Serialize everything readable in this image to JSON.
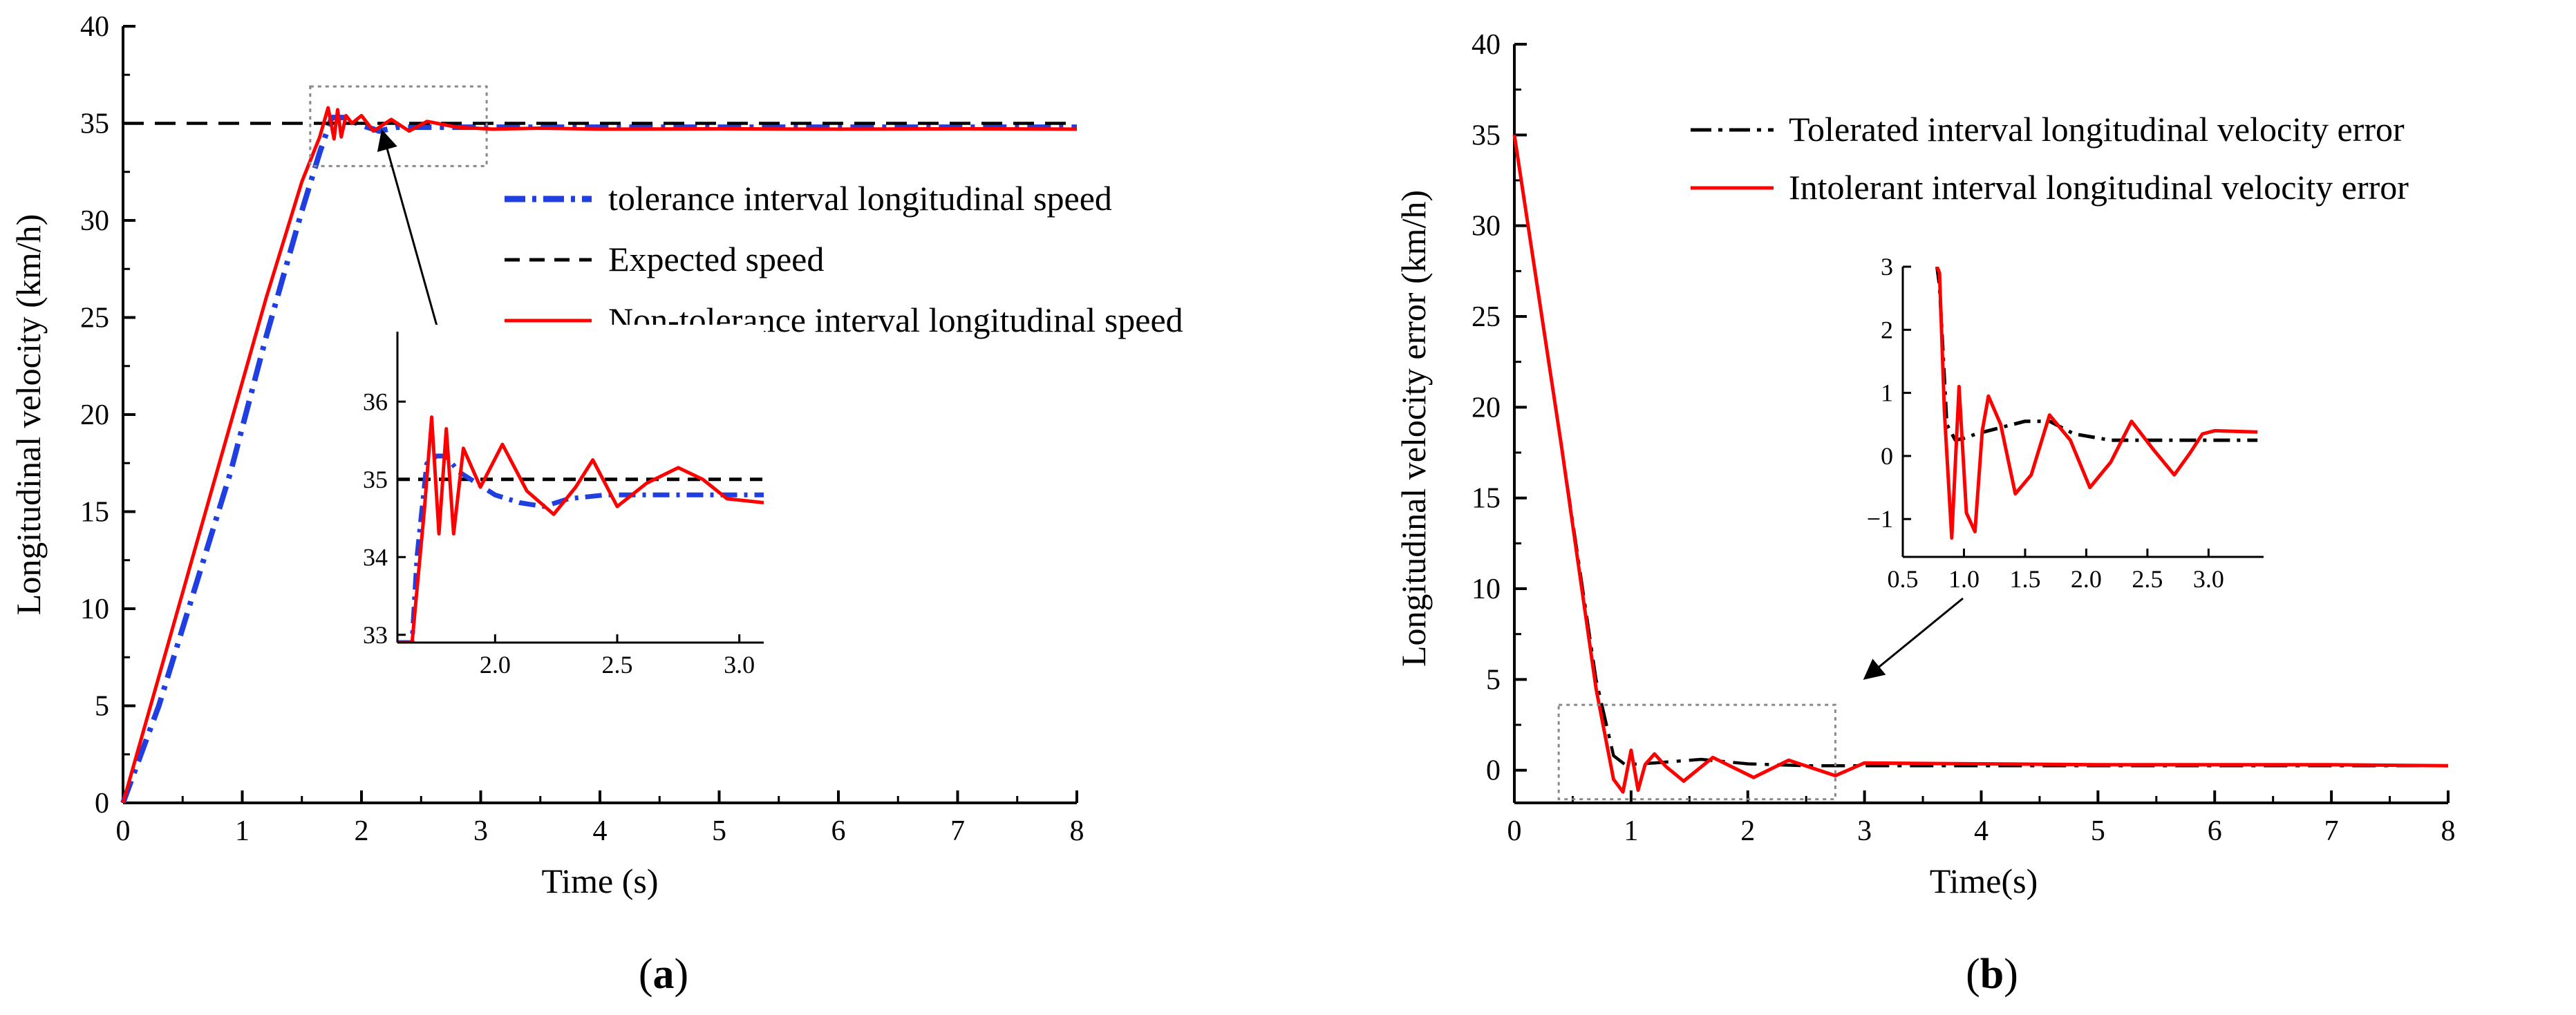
{
  "chart_data": [
    {
      "id": "a",
      "type": "line",
      "panel_label": "a",
      "xlabel": "Time (s)",
      "ylabel": "Longitudinal velocity (km/h)",
      "xlim": [
        0,
        8
      ],
      "ylim": [
        0,
        40
      ],
      "xticks": [
        0,
        1,
        2,
        3,
        4,
        5,
        6,
        7,
        8
      ],
      "yticks": [
        0,
        5,
        10,
        15,
        20,
        25,
        30,
        35,
        40
      ],
      "legend": {
        "position": "right",
        "entries": [
          {
            "label": "tolerance interval  longitudinal speed",
            "color": "#1f3fe0",
            "style": "dashdot"
          },
          {
            "label": "Expected speed",
            "color": "#000000",
            "style": "dashed"
          },
          {
            "label": "Non-tolerance interval longitudinal speed",
            "color": "#ff0000",
            "style": "solid"
          }
        ]
      },
      "series": [
        {
          "name": "tolerance interval  longitudinal speed",
          "color": "#1f3fe0",
          "x": [
            0,
            0.3,
            0.6,
            0.9,
            1.2,
            1.5,
            1.65,
            1.75,
            1.85,
            2.0,
            2.15,
            2.3,
            2.6,
            3.0,
            4.0,
            5.0,
            6.0,
            7.0,
            8.0
          ],
          "y": [
            0,
            5.0,
            11.0,
            17.0,
            24.0,
            30.5,
            33.5,
            35.3,
            35.3,
            34.9,
            34.6,
            34.8,
            34.8,
            34.8,
            34.8,
            34.8,
            34.8,
            34.8,
            34.8
          ]
        },
        {
          "name": "Expected speed",
          "color": "#000000",
          "x": [
            0,
            8
          ],
          "y": [
            35,
            35
          ]
        },
        {
          "name": "Non-tolerance interval longitudinal speed",
          "color": "#ff0000",
          "x": [
            0,
            0.3,
            0.6,
            0.9,
            1.2,
            1.5,
            1.65,
            1.72,
            1.77,
            1.8,
            1.83,
            1.87,
            1.92,
            2.0,
            2.1,
            2.25,
            2.4,
            2.55,
            2.8,
            3.1,
            3.5,
            4.0,
            5.0,
            6.0,
            7.0,
            8.0
          ],
          "y": [
            0,
            6.5,
            13.0,
            19.5,
            26.0,
            32.0,
            34.3,
            35.8,
            34.2,
            35.7,
            34.3,
            35.4,
            35.0,
            35.4,
            34.6,
            35.2,
            34.6,
            35.1,
            34.8,
            34.7,
            34.75,
            34.7,
            34.72,
            34.7,
            34.72,
            34.7
          ]
        }
      ],
      "inset": {
        "xlim": [
          1.6,
          3.1
        ],
        "ylim": [
          32.9,
          36.9
        ],
        "xticks": [
          2.0,
          2.5,
          3.0
        ],
        "xtick_labels": [
          "2.0",
          "2.5",
          "3.0"
        ],
        "yticks": [
          33,
          34,
          35,
          36
        ],
        "ytick_labels": [
          "33",
          "34",
          "35",
          "36"
        ],
        "zoom_box": {
          "x": [
            1.57,
            3.05
          ],
          "y": [
            32.8,
            36.9
          ]
        },
        "series": [
          {
            "name": "Expected speed",
            "color": "#000000",
            "style": "dashed",
            "x": [
              1.6,
              3.1
            ],
            "y": [
              35,
              35
            ]
          },
          {
            "name": "tolerance interval  longitudinal speed",
            "color": "#1f3fe0",
            "style": "dashdot",
            "x": [
              1.6,
              1.66,
              1.68,
              1.72,
              1.76,
              1.8,
              1.85,
              1.9,
              2.0,
              2.1,
              2.2,
              2.3,
              2.45,
              2.6,
              2.8,
              3.1
            ],
            "y": [
              32.9,
              32.9,
              34.0,
              35.2,
              35.3,
              35.3,
              35.1,
              35.0,
              34.8,
              34.7,
              34.65,
              34.75,
              34.8,
              34.8,
              34.8,
              34.8
            ]
          },
          {
            "name": "Non-tolerance interval longitudinal speed",
            "color": "#ff0000",
            "style": "solid",
            "x": [
              1.6,
              1.66,
              1.71,
              1.74,
              1.77,
              1.8,
              1.83,
              1.87,
              1.94,
              2.03,
              2.13,
              2.24,
              2.33,
              2.4,
              2.5,
              2.62,
              2.75,
              2.85,
              2.95,
              3.1
            ],
            "y": [
              32.9,
              32.9,
              34.6,
              35.8,
              34.3,
              35.65,
              34.3,
              35.4,
              34.9,
              35.45,
              34.85,
              34.55,
              34.9,
              35.25,
              34.65,
              34.95,
              35.15,
              35.0,
              34.75,
              34.7
            ]
          }
        ]
      }
    },
    {
      "id": "b",
      "type": "line",
      "panel_label": "b",
      "xlabel": "Time(s)",
      "ylabel": "Longitudinal velocity error (km/h)",
      "xlim": [
        0,
        8
      ],
      "ylim": [
        -1.8,
        40
      ],
      "xticks": [
        0,
        1,
        2,
        3,
        4,
        5,
        6,
        7,
        8
      ],
      "yticks": [
        0,
        5,
        10,
        15,
        20,
        25,
        30,
        35,
        40
      ],
      "legend": {
        "position": "top-right",
        "entries": [
          {
            "label": "Tolerated interval longitudinal velocity error",
            "color": "#000000",
            "style": "dashdot"
          },
          {
            "label": "Intolerant interval longitudinal velocity error",
            "color": "#ff0000",
            "style": "solid"
          }
        ]
      },
      "series": [
        {
          "name": "Tolerated interval longitudinal velocity error",
          "color": "#000000",
          "x": [
            0,
            0.4,
            0.7,
            0.85,
            0.95,
            1.2,
            1.6,
            2.0,
            2.5,
            3.0,
            4.0,
            5.0,
            6.0,
            7.0,
            8.0
          ],
          "y": [
            35,
            18.0,
            5.0,
            0.8,
            0.3,
            0.4,
            0.6,
            0.35,
            0.25,
            0.25,
            0.25,
            0.25,
            0.25,
            0.25,
            0.25
          ]
        },
        {
          "name": "Intolerant interval longitudinal velocity error",
          "color": "#ff0000",
          "x": [
            0,
            0.4,
            0.7,
            0.85,
            0.93,
            1.0,
            1.06,
            1.12,
            1.2,
            1.3,
            1.45,
            1.7,
            2.05,
            2.35,
            2.75,
            3.0,
            4.0,
            5.0,
            6.0,
            7.0,
            8.0
          ],
          "y": [
            35,
            18.0,
            4.5,
            -0.5,
            -1.2,
            1.1,
            -1.1,
            0.3,
            0.9,
            0.2,
            -0.6,
            0.7,
            -0.4,
            0.55,
            -0.3,
            0.4,
            0.35,
            0.3,
            0.3,
            0.3,
            0.25
          ]
        }
      ],
      "inset": {
        "xlim": [
          0.5,
          3.45
        ],
        "ylim": [
          -1.6,
          3.0
        ],
        "xticks": [
          0.5,
          1.0,
          1.5,
          2.0,
          2.5,
          3.0
        ],
        "xtick_labels": [
          "0.5",
          "1.0",
          "1.5",
          "2.0",
          "2.5",
          "3.0"
        ],
        "yticks": [
          -1,
          0,
          1,
          2,
          3
        ],
        "ytick_labels": [
          "−1",
          "0",
          "1",
          "2",
          "3"
        ],
        "zoom_box": {
          "x": [
            0.38,
            2.75
          ],
          "y": [
            -1.6,
            3.6
          ]
        },
        "series": [
          {
            "name": "Tolerated interval longitudinal velocity error",
            "color": "#000000",
            "style": "dashdot",
            "x": [
              0.78,
              0.8,
              0.86,
              0.93,
              1.0,
              1.1,
              1.3,
              1.5,
              1.7,
              1.9,
              2.2,
              2.6,
              3.0,
              3.4
            ],
            "y": [
              3.0,
              2.7,
              0.5,
              0.25,
              0.28,
              0.35,
              0.45,
              0.55,
              0.55,
              0.35,
              0.25,
              0.25,
              0.25,
              0.25
            ]
          },
          {
            "name": "Intolerant interval longitudinal velocity error",
            "color": "#ff0000",
            "style": "solid",
            "x": [
              0.78,
              0.8,
              0.84,
              0.9,
              0.96,
              1.02,
              1.09,
              1.15,
              1.2,
              1.3,
              1.42,
              1.55,
              1.7,
              1.87,
              2.03,
              2.2,
              2.37,
              2.55,
              2.72,
              2.85,
              2.95,
              3.05,
              3.4
            ],
            "y": [
              3.0,
              2.9,
              0.7,
              -1.3,
              1.1,
              -0.9,
              -1.2,
              0.4,
              0.95,
              0.5,
              -0.6,
              -0.3,
              0.65,
              0.25,
              -0.5,
              -0.1,
              0.55,
              0.1,
              -0.3,
              0.05,
              0.35,
              0.4,
              0.38
            ]
          }
        ]
      }
    }
  ]
}
